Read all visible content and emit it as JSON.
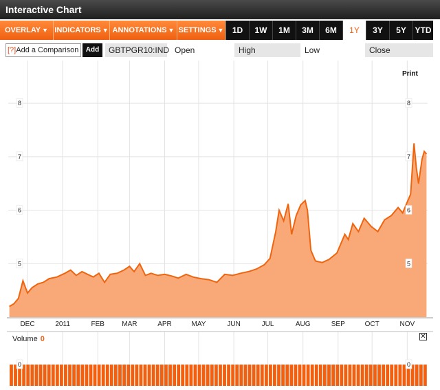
{
  "window": {
    "title": "Interactive Chart"
  },
  "toolbar": {
    "menus": [
      {
        "label": "OVERLAY"
      },
      {
        "label": "INDICATORS"
      },
      {
        "label": "ANNOTATIONS"
      },
      {
        "label": "SETTINGS"
      }
    ],
    "ranges": [
      {
        "label": "1D",
        "active": false
      },
      {
        "label": "1W",
        "active": false
      },
      {
        "label": "1M",
        "active": false
      },
      {
        "label": "3M",
        "active": false
      },
      {
        "label": "6M",
        "active": false
      },
      {
        "label": "1Y",
        "active": true
      },
      {
        "label": "3Y",
        "active": false
      },
      {
        "label": "5Y",
        "active": false
      },
      {
        "label": "YTD",
        "active": false
      }
    ]
  },
  "quote": {
    "compare_help": "[?]",
    "compare_placeholder": "Add a Comparison",
    "add_label": "Add",
    "ticker": "GBTPGR10:IND",
    "open_label": "Open",
    "high_label": "High",
    "low_label": "Low",
    "close_label": "Close"
  },
  "print_label": "Print",
  "volume": {
    "label": "Volume",
    "value": "0",
    "close_icon": "close-icon"
  },
  "colors": {
    "accent": "#f06010",
    "fill": "#f9a877",
    "line": "#ee6510"
  },
  "chart_data": {
    "type": "area",
    "title": "",
    "xlabel": "",
    "ylabel": "",
    "ylim": [
      4.0,
      8.8
    ],
    "yticks": [
      "5",
      "6",
      "7",
      "8"
    ],
    "xticks": [
      {
        "label": "DEC",
        "x": "2010-12-01"
      },
      {
        "label": "2011",
        "x": "2011-01-01"
      },
      {
        "label": "FEB",
        "x": "2011-02-01"
      },
      {
        "label": "MAR",
        "x": "2011-03-01"
      },
      {
        "label": "APR",
        "x": "2011-04-01"
      },
      {
        "label": "MAY",
        "x": "2011-05-01"
      },
      {
        "label": "JUN",
        "x": "2011-06-01"
      },
      {
        "label": "JUL",
        "x": "2011-07-01"
      },
      {
        "label": "AUG",
        "x": "2011-08-01"
      },
      {
        "label": "SEP",
        "x": "2011-09-01"
      },
      {
        "label": "OCT",
        "x": "2011-10-01"
      },
      {
        "label": "NOV",
        "x": "2011-11-01"
      }
    ],
    "grid": true,
    "series": [
      {
        "x": [
          "2010-11-15",
          "2010-11-19",
          "2010-11-23",
          "2010-11-27",
          "2010-12-01",
          "2010-12-05",
          "2010-12-10",
          "2010-12-15",
          "2010-12-20",
          "2010-12-27",
          "2011-01-03",
          "2011-01-08",
          "2011-01-13",
          "2011-01-18",
          "2011-01-23",
          "2011-01-28",
          "2011-02-02",
          "2011-02-07",
          "2011-02-12",
          "2011-02-18",
          "2011-02-24",
          "2011-03-01",
          "2011-03-05",
          "2011-03-10",
          "2011-03-15",
          "2011-03-20",
          "2011-03-26",
          "2011-04-01",
          "2011-04-07",
          "2011-04-13",
          "2011-04-20",
          "2011-04-26",
          "2011-05-03",
          "2011-05-10",
          "2011-05-17",
          "2011-05-24",
          "2011-05-31",
          "2011-06-07",
          "2011-06-14",
          "2011-06-21",
          "2011-06-28",
          "2011-07-03",
          "2011-07-08",
          "2011-07-11",
          "2011-07-15",
          "2011-07-19",
          "2011-07-22",
          "2011-07-26",
          "2011-07-30",
          "2011-08-03",
          "2011-08-05",
          "2011-08-08",
          "2011-08-12",
          "2011-08-18",
          "2011-08-24",
          "2011-08-31",
          "2011-09-07",
          "2011-09-10",
          "2011-09-14",
          "2011-09-19",
          "2011-09-24",
          "2011-09-30",
          "2011-10-06",
          "2011-10-12",
          "2011-10-18",
          "2011-10-24",
          "2011-10-28",
          "2011-11-01",
          "2011-11-04",
          "2011-11-07",
          "2011-11-09",
          "2011-11-11",
          "2011-11-14",
          "2011-11-16",
          "2011-11-18"
        ],
        "values": [
          4.2,
          4.25,
          4.35,
          4.68,
          4.45,
          4.55,
          4.62,
          4.65,
          4.72,
          4.75,
          4.82,
          4.88,
          4.78,
          4.85,
          4.8,
          4.75,
          4.82,
          4.65,
          4.8,
          4.82,
          4.88,
          4.95,
          4.85,
          5.0,
          4.78,
          4.82,
          4.78,
          4.8,
          4.77,
          4.73,
          4.8,
          4.75,
          4.72,
          4.7,
          4.65,
          4.8,
          4.78,
          4.82,
          4.85,
          4.9,
          4.98,
          5.1,
          5.6,
          6.0,
          5.8,
          6.12,
          5.55,
          5.9,
          6.1,
          6.18,
          6.0,
          5.25,
          5.05,
          5.02,
          5.08,
          5.2,
          5.55,
          5.45,
          5.75,
          5.6,
          5.85,
          5.7,
          5.6,
          5.82,
          5.9,
          6.05,
          5.95,
          6.15,
          6.3,
          7.25,
          6.8,
          6.5,
          6.95,
          7.1,
          7.05
        ]
      }
    ],
    "volume": {
      "ylim": [
        0,
        1
      ],
      "yticks": [
        "0"
      ],
      "bars": 100
    }
  }
}
